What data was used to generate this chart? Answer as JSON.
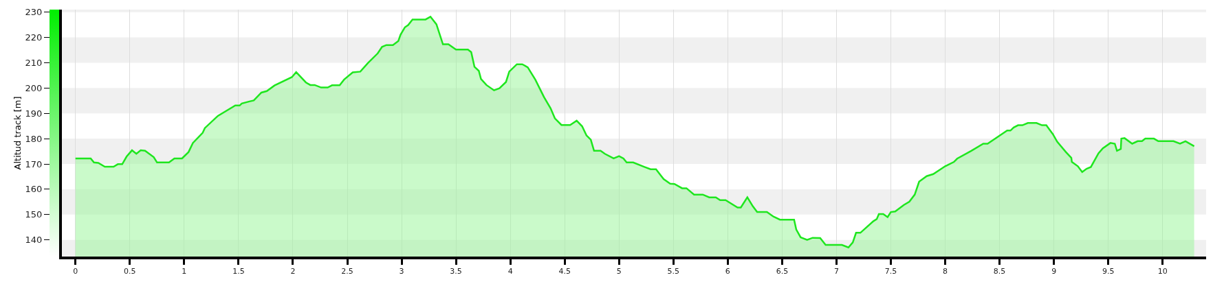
{
  "chart_data": {
    "type": "area",
    "ylabel": "Altitud track [m]",
    "xlim": [
      -0.125,
      10.4
    ],
    "ylim": [
      133.4,
      231
    ],
    "xticks": [
      0,
      0.5,
      1,
      1.5,
      2,
      2.5,
      3,
      3.5,
      4,
      4.5,
      5,
      5.5,
      6,
      6.5,
      7,
      7.5,
      8,
      8.5,
      9,
      9.5,
      10
    ],
    "yticks": [
      140,
      150,
      160,
      170,
      180,
      190,
      200,
      210,
      220,
      230
    ],
    "grid": "x",
    "line_style": "solid",
    "marker": "none",
    "bands": [
      {
        "axis": "y",
        "from": 133.4,
        "to": 140,
        "color": "#f0f0f0"
      },
      {
        "axis": "y",
        "from": 150,
        "to": 160,
        "color": "#f0f0f0"
      },
      {
        "axis": "y",
        "from": 170,
        "to": 180,
        "color": "#f0f0f0"
      },
      {
        "axis": "y",
        "from": 190,
        "to": 200,
        "color": "#f0f0f0"
      },
      {
        "axis": "y",
        "from": 210,
        "to": 220,
        "color": "#f0f0f0"
      },
      {
        "axis": "y",
        "from": 230,
        "to": 231,
        "color": "#f0f0f0"
      }
    ],
    "series": [
      {
        "color": "#1ee61e",
        "x": [
          0,
          0.14,
          0.17,
          0.21,
          0.27,
          0.35,
          0.39,
          0.43,
          0.47,
          0.52,
          0.56,
          0.6,
          0.64,
          0.72,
          0.75,
          0.86,
          0.91,
          0.98,
          1.04,
          1.08,
          1.17,
          1.19,
          1.31,
          1.47,
          1.51,
          1.53,
          1.6,
          1.64,
          1.71,
          1.76,
          1.83,
          1.99,
          2.03,
          2.12,
          2.16,
          2.2,
          2.26,
          2.32,
          2.36,
          2.43,
          2.47,
          2.55,
          2.62,
          2.69,
          2.78,
          2.82,
          2.86,
          2.92,
          2.97,
          2.99,
          3.03,
          3.06,
          3.1,
          3.22,
          3.265,
          3.32,
          3.38,
          3.43,
          3.5,
          3.61,
          3.64,
          3.67,
          3.71,
          3.73,
          3.78,
          3.85,
          3.9,
          3.96,
          3.99,
          4.06,
          4.11,
          4.16,
          4.23,
          4.31,
          4.37,
          4.41,
          4.47,
          4.55,
          4.61,
          4.66,
          4.7,
          4.74,
          4.77,
          4.83,
          4.87,
          4.95,
          5,
          5.04,
          5.07,
          5.13,
          5.23,
          5.29,
          5.34,
          5.41,
          5.47,
          5.51,
          5.58,
          5.62,
          5.69,
          5.77,
          5.83,
          5.89,
          5.93,
          5.98,
          6.09,
          6.12,
          6.18,
          6.23,
          6.27,
          6.36,
          6.42,
          6.48,
          6.61,
          6.63,
          6.67,
          6.73,
          6.78,
          6.85,
          6.9,
          7.05,
          7.11,
          7.15,
          7.18,
          7.22,
          7.34,
          7.37,
          7.39,
          7.43,
          7.47,
          7.5,
          7.54,
          7.62,
          7.67,
          7.72,
          7.76,
          7.83,
          7.89,
          8,
          8.08,
          8.11,
          8.24,
          8.35,
          8.39,
          8.57,
          8.6,
          8.63,
          8.67,
          8.71,
          8.76,
          8.84,
          8.89,
          8.93,
          8.99,
          9.03,
          9.11,
          9.16,
          9.165,
          9.22,
          9.26,
          9.3,
          9.34,
          9.41,
          9.45,
          9.52,
          9.56,
          9.58,
          9.615,
          9.62,
          9.65,
          9.72,
          9.77,
          9.81,
          9.84,
          9.92,
          9.96,
          10.1,
          10.16,
          10.21,
          10.29
        ],
        "values": [
          172.2,
          172.2,
          170.6,
          170.4,
          168.9,
          168.9,
          169.9,
          169.9,
          172.9,
          175.4,
          174,
          175.4,
          175.2,
          172.7,
          170.6,
          170.6,
          172.2,
          172.2,
          174.7,
          178.3,
          182.3,
          184.2,
          189,
          193.1,
          193.1,
          193.9,
          194.7,
          195.1,
          198.2,
          198.8,
          201,
          204.3,
          206.3,
          202.2,
          201.2,
          201.2,
          200.2,
          200.2,
          201.1,
          201.1,
          203.3,
          206.2,
          206.5,
          209.9,
          213.7,
          216.3,
          217,
          217,
          218.6,
          221.1,
          224,
          224.9,
          227.1,
          227.1,
          228.2,
          225.2,
          217.3,
          217.3,
          215.2,
          215.2,
          214.2,
          208.4,
          206.8,
          203.6,
          201.2,
          199.1,
          199.9,
          202.4,
          206.5,
          209.4,
          209.4,
          208.2,
          203.3,
          196.4,
          192,
          188,
          185.4,
          185.4,
          187.1,
          184.9,
          181.3,
          179.6,
          175.2,
          175.2,
          174,
          172.2,
          173.1,
          172.2,
          170.6,
          170.6,
          168.9,
          167.9,
          167.9,
          164,
          162.2,
          162.1,
          160.4,
          160.4,
          157.9,
          157.9,
          156.8,
          156.8,
          155.7,
          155.7,
          152.8,
          152.8,
          156.8,
          153.3,
          151,
          151,
          149.2,
          148,
          148,
          144.1,
          141,
          140,
          140.8,
          140.7,
          138,
          138,
          137,
          139,
          142.8,
          142.8,
          147.4,
          148.2,
          150.2,
          150.2,
          149,
          151,
          151.2,
          153.8,
          155.1,
          157.9,
          163,
          165.2,
          166,
          169.1,
          170.8,
          172.1,
          175.2,
          178,
          178,
          183.2,
          183.2,
          184.4,
          185.3,
          185.3,
          186.2,
          186.2,
          185.3,
          185.3,
          181.8,
          178.8,
          174.7,
          172.4,
          170.8,
          169.1,
          166.8,
          168.1,
          168.8,
          174.2,
          176.2,
          178.3,
          178,
          175.2,
          175.9,
          180,
          180.2,
          178,
          179,
          179,
          180,
          180,
          179,
          179,
          178,
          179,
          177
        ]
      }
    ]
  }
}
